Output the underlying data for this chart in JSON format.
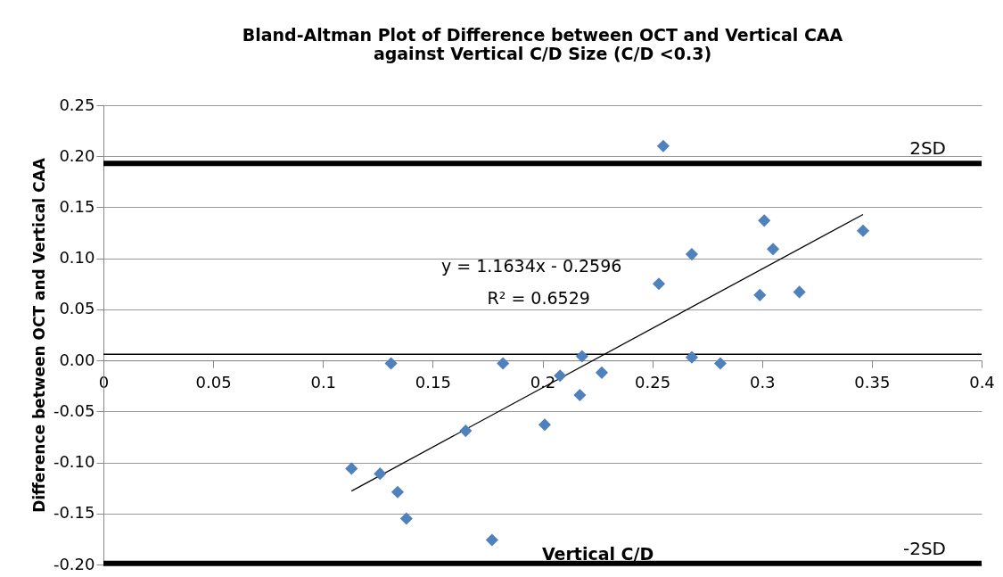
{
  "chart_data": {
    "type": "scatter",
    "title": "Bland-Altman Plot of Difference between OCT and Vertical CAA\nagainst Vertical C/D Size (C/D <0.3)",
    "xlabel": "Vertical C/D",
    "ylabel": "Difference between OCT and Vertical CAA",
    "series": [
      {
        "color": "#4f81bd",
        "marker": "diamond",
        "x": [
          0.131,
          0.113,
          0.126,
          0.134,
          0.138,
          0.165,
          0.177,
          0.182,
          0.255,
          0.301,
          0.305,
          0.346,
          0.268,
          0.253,
          0.299,
          0.317,
          0.218,
          0.268,
          0.281,
          0.208,
          0.227,
          0.217,
          0.201
        ],
        "values": [
          -0.003,
          -0.106,
          -0.111,
          -0.129,
          -0.155,
          -0.069,
          -0.176,
          -0.003,
          0.21,
          0.137,
          0.109,
          0.127,
          0.104,
          0.075,
          0.064,
          0.067,
          0.004,
          0.003,
          -0.003,
          -0.015,
          -0.012,
          -0.034,
          -0.063
        ]
      },
      {
        "type": "line",
        "color": "#000000",
        "x": [
          0.113,
          0.346
        ],
        "values": [
          -0.128,
          0.143
        ]
      }
    ],
    "xlim": [
      0,
      0.4
    ],
    "xticks": [
      0,
      0.05,
      0.1,
      0.15,
      0.2,
      0.25,
      0.3,
      0.35,
      0.4
    ],
    "ylim": [
      -0.2,
      0.25
    ],
    "yticks": [
      {
        "value": -0.2,
        "label": "-0.20"
      },
      {
        "value": -0.15,
        "label": "-0.15"
      },
      {
        "value": -0.1,
        "label": "-0.10"
      },
      {
        "value": -0.05,
        "label": "-0.05"
      },
      {
        "value": 0,
        "label": "0.00"
      },
      {
        "value": 0.05,
        "label": "0.05"
      },
      {
        "value": 0.1,
        "label": "0.10"
      },
      {
        "value": 0.15,
        "label": "0.15"
      },
      {
        "value": 0.2,
        "label": "0.20"
      },
      {
        "value": 0.25,
        "label": "0.25"
      }
    ],
    "ref_lines": [
      {
        "axis": "y",
        "value": 0.193,
        "label": "2SD",
        "color": "#000000"
      },
      {
        "axis": "y",
        "value": -0.199,
        "label": "-2SD",
        "color": "#000000"
      },
      {
        "axis": "y",
        "value": 0.006,
        "label": null,
        "color": "#000000"
      }
    ],
    "annotations": [
      "y = 1.1634x - 0.2596",
      "R² = 0.6529"
    ],
    "grid": "y"
  }
}
